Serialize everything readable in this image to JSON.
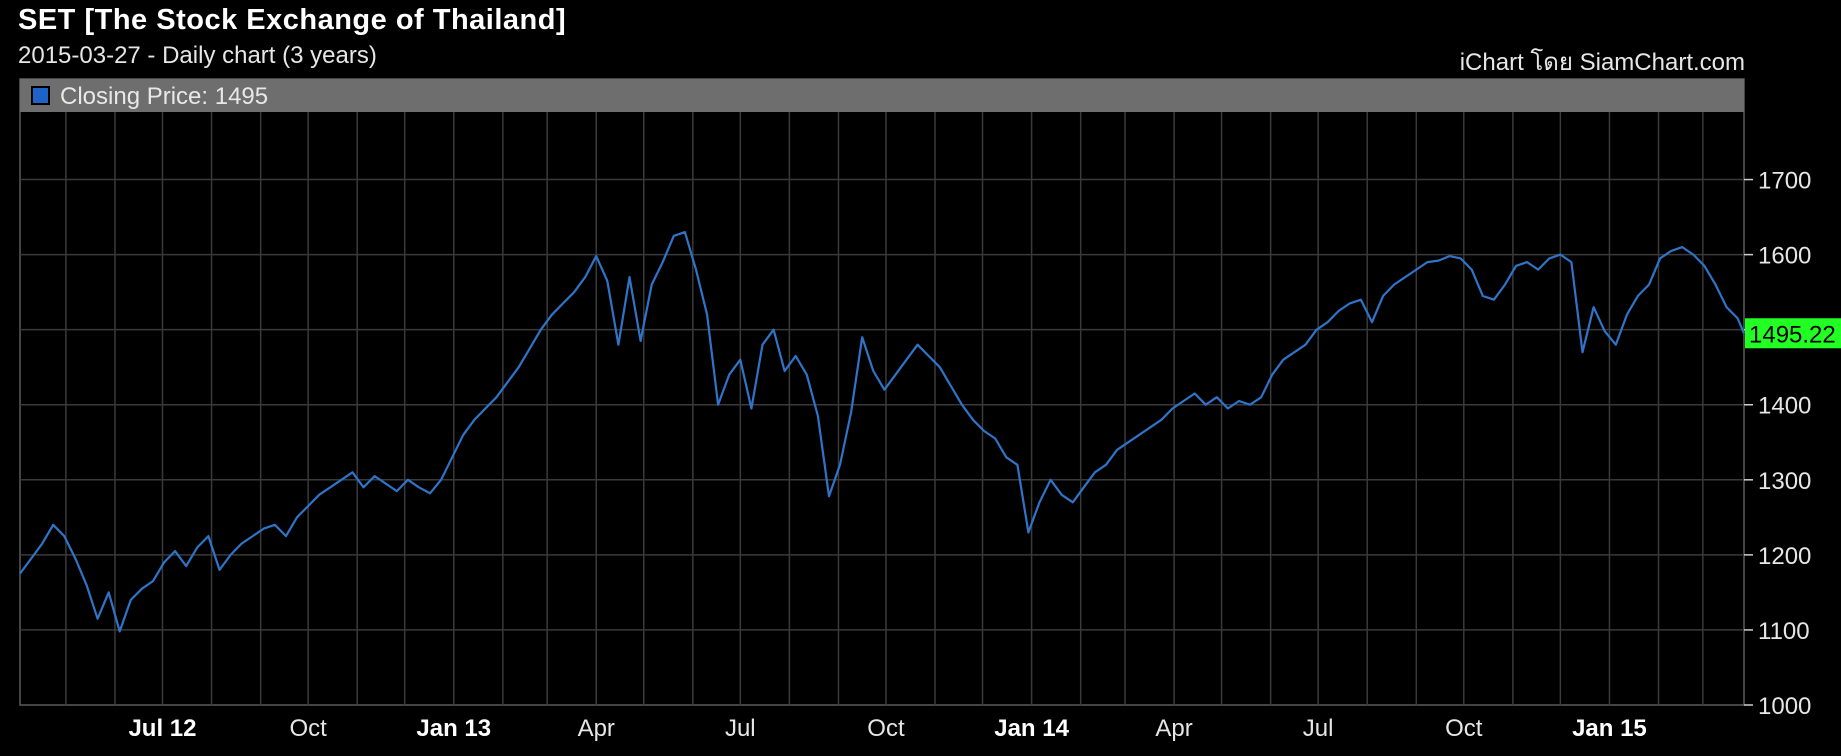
{
  "header": {
    "title": "SET [The Stock Exchange of Thailand]",
    "subtitle": "2015-03-27 - Daily chart (3 years)",
    "credit": "iChart โดย SiamChart.com"
  },
  "chart_data": {
    "type": "line",
    "legend": {
      "label": "Closing Price: 1495",
      "color": "#1e64c8",
      "placement": "top-left"
    },
    "last_value_label": "1495.22",
    "colors": {
      "line": "#2f74c8",
      "grid": "#3a3a3a",
      "last_value_bg": "#22ff22",
      "legend_bar": "#6e6e6e"
    },
    "grid": true,
    "ylim": [
      1000,
      1790
    ],
    "xlim": [
      "2012-04-02",
      "2015-03-27"
    ],
    "y_ticks": [
      1000,
      1100,
      1200,
      1300,
      1400,
      1500,
      1600,
      1700
    ],
    "x_ticks": [
      {
        "date": "2012-07-01",
        "label": "Jul 12",
        "major": true
      },
      {
        "date": "2012-10-01",
        "label": "Oct",
        "major": false
      },
      {
        "date": "2013-01-01",
        "label": "Jan 13",
        "major": true
      },
      {
        "date": "2013-04-01",
        "label": "Apr",
        "major": false
      },
      {
        "date": "2013-07-01",
        "label": "Jul",
        "major": false
      },
      {
        "date": "2013-10-01",
        "label": "Oct",
        "major": false
      },
      {
        "date": "2014-01-01",
        "label": "Jan 14",
        "major": true
      },
      {
        "date": "2014-04-01",
        "label": "Apr",
        "major": false
      },
      {
        "date": "2014-07-01",
        "label": "Jul",
        "major": false
      },
      {
        "date": "2014-10-01",
        "label": "Oct",
        "major": false
      },
      {
        "date": "2015-01-01",
        "label": "Jan 15",
        "major": true
      }
    ],
    "series": [
      {
        "name": "Closing Price",
        "points": [
          [
            "2012-04-02",
            1175
          ],
          [
            "2012-04-09",
            1195
          ],
          [
            "2012-04-16",
            1215
          ],
          [
            "2012-04-23",
            1240
          ],
          [
            "2012-04-30",
            1225
          ],
          [
            "2012-05-07",
            1195
          ],
          [
            "2012-05-14",
            1160
          ],
          [
            "2012-05-21",
            1115
          ],
          [
            "2012-05-28",
            1150
          ],
          [
            "2012-06-04",
            1098
          ],
          [
            "2012-06-11",
            1140
          ],
          [
            "2012-06-18",
            1155
          ],
          [
            "2012-06-25",
            1165
          ],
          [
            "2012-07-02",
            1190
          ],
          [
            "2012-07-09",
            1205
          ],
          [
            "2012-07-16",
            1185
          ],
          [
            "2012-07-23",
            1210
          ],
          [
            "2012-07-30",
            1225
          ],
          [
            "2012-08-06",
            1180
          ],
          [
            "2012-08-13",
            1200
          ],
          [
            "2012-08-20",
            1215
          ],
          [
            "2012-08-27",
            1225
          ],
          [
            "2012-09-03",
            1235
          ],
          [
            "2012-09-10",
            1240
          ],
          [
            "2012-09-17",
            1225
          ],
          [
            "2012-09-24",
            1250
          ],
          [
            "2012-10-01",
            1265
          ],
          [
            "2012-10-08",
            1280
          ],
          [
            "2012-10-15",
            1290
          ],
          [
            "2012-10-22",
            1300
          ],
          [
            "2012-10-29",
            1310
          ],
          [
            "2012-11-05",
            1290
          ],
          [
            "2012-11-12",
            1305
          ],
          [
            "2012-11-19",
            1295
          ],
          [
            "2012-11-26",
            1285
          ],
          [
            "2012-12-03",
            1300
          ],
          [
            "2012-12-10",
            1290
          ],
          [
            "2012-12-17",
            1282
          ],
          [
            "2012-12-24",
            1300
          ],
          [
            "2012-12-31",
            1330
          ],
          [
            "2013-01-07",
            1360
          ],
          [
            "2013-01-14",
            1380
          ],
          [
            "2013-01-21",
            1395
          ],
          [
            "2013-01-28",
            1410
          ],
          [
            "2013-02-04",
            1430
          ],
          [
            "2013-02-11",
            1450
          ],
          [
            "2013-02-18",
            1475
          ],
          [
            "2013-02-25",
            1500
          ],
          [
            "2013-03-04",
            1520
          ],
          [
            "2013-03-11",
            1535
          ],
          [
            "2013-03-18",
            1550
          ],
          [
            "2013-03-25",
            1570
          ],
          [
            "2013-04-01",
            1598
          ],
          [
            "2013-04-08",
            1565
          ],
          [
            "2013-04-15",
            1480
          ],
          [
            "2013-04-22",
            1570
          ],
          [
            "2013-04-29",
            1485
          ],
          [
            "2013-05-06",
            1560
          ],
          [
            "2013-05-13",
            1590
          ],
          [
            "2013-05-20",
            1625
          ],
          [
            "2013-05-27",
            1630
          ],
          [
            "2013-06-03",
            1580
          ],
          [
            "2013-06-10",
            1520
          ],
          [
            "2013-06-17",
            1400
          ],
          [
            "2013-06-24",
            1440
          ],
          [
            "2013-07-01",
            1460
          ],
          [
            "2013-07-08",
            1395
          ],
          [
            "2013-07-15",
            1480
          ],
          [
            "2013-07-22",
            1500
          ],
          [
            "2013-07-29",
            1445
          ],
          [
            "2013-08-05",
            1465
          ],
          [
            "2013-08-12",
            1440
          ],
          [
            "2013-08-19",
            1385
          ],
          [
            "2013-08-26",
            1278
          ],
          [
            "2013-09-02",
            1320
          ],
          [
            "2013-09-09",
            1390
          ],
          [
            "2013-09-16",
            1490
          ],
          [
            "2013-09-23",
            1445
          ],
          [
            "2013-09-30",
            1420
          ],
          [
            "2013-10-07",
            1440
          ],
          [
            "2013-10-14",
            1460
          ],
          [
            "2013-10-21",
            1480
          ],
          [
            "2013-10-28",
            1465
          ],
          [
            "2013-11-04",
            1450
          ],
          [
            "2013-11-11",
            1425
          ],
          [
            "2013-11-18",
            1400
          ],
          [
            "2013-11-25",
            1380
          ],
          [
            "2013-12-02",
            1365
          ],
          [
            "2013-12-09",
            1355
          ],
          [
            "2013-12-16",
            1330
          ],
          [
            "2013-12-23",
            1320
          ],
          [
            "2013-12-30",
            1230
          ],
          [
            "2014-01-06",
            1270
          ],
          [
            "2014-01-13",
            1300
          ],
          [
            "2014-01-20",
            1280
          ],
          [
            "2014-01-27",
            1270
          ],
          [
            "2014-02-03",
            1290
          ],
          [
            "2014-02-10",
            1310
          ],
          [
            "2014-02-17",
            1320
          ],
          [
            "2014-02-24",
            1340
          ],
          [
            "2014-03-03",
            1350
          ],
          [
            "2014-03-10",
            1360
          ],
          [
            "2014-03-17",
            1370
          ],
          [
            "2014-03-24",
            1380
          ],
          [
            "2014-03-31",
            1395
          ],
          [
            "2014-04-07",
            1405
          ],
          [
            "2014-04-14",
            1415
          ],
          [
            "2014-04-21",
            1400
          ],
          [
            "2014-04-28",
            1410
          ],
          [
            "2014-05-05",
            1395
          ],
          [
            "2014-05-12",
            1405
          ],
          [
            "2014-05-19",
            1400
          ],
          [
            "2014-05-26",
            1410
          ],
          [
            "2014-06-02",
            1440
          ],
          [
            "2014-06-09",
            1460
          ],
          [
            "2014-06-16",
            1470
          ],
          [
            "2014-06-23",
            1480
          ],
          [
            "2014-06-30",
            1500
          ],
          [
            "2014-07-07",
            1510
          ],
          [
            "2014-07-14",
            1525
          ],
          [
            "2014-07-21",
            1535
          ],
          [
            "2014-07-28",
            1540
          ],
          [
            "2014-08-04",
            1510
          ],
          [
            "2014-08-11",
            1545
          ],
          [
            "2014-08-18",
            1560
          ],
          [
            "2014-08-25",
            1570
          ],
          [
            "2014-09-01",
            1580
          ],
          [
            "2014-09-08",
            1590
          ],
          [
            "2014-09-15",
            1592
          ],
          [
            "2014-09-22",
            1598
          ],
          [
            "2014-09-29",
            1595
          ],
          [
            "2014-10-06",
            1580
          ],
          [
            "2014-10-13",
            1545
          ],
          [
            "2014-10-20",
            1540
          ],
          [
            "2014-10-27",
            1560
          ],
          [
            "2014-11-03",
            1585
          ],
          [
            "2014-11-10",
            1590
          ],
          [
            "2014-11-17",
            1580
          ],
          [
            "2014-11-24",
            1595
          ],
          [
            "2014-12-01",
            1600
          ],
          [
            "2014-12-08",
            1590
          ],
          [
            "2014-12-15",
            1470
          ],
          [
            "2014-12-22",
            1530
          ],
          [
            "2014-12-29",
            1498
          ],
          [
            "2015-01-05",
            1480
          ],
          [
            "2015-01-12",
            1520
          ],
          [
            "2015-01-19",
            1545
          ],
          [
            "2015-01-26",
            1560
          ],
          [
            "2015-02-02",
            1595
          ],
          [
            "2015-02-09",
            1605
          ],
          [
            "2015-02-16",
            1610
          ],
          [
            "2015-02-23",
            1600
          ],
          [
            "2015-03-02",
            1585
          ],
          [
            "2015-03-09",
            1560
          ],
          [
            "2015-03-16",
            1530
          ],
          [
            "2015-03-23",
            1515
          ],
          [
            "2015-03-27",
            1495.22
          ]
        ]
      }
    ]
  }
}
